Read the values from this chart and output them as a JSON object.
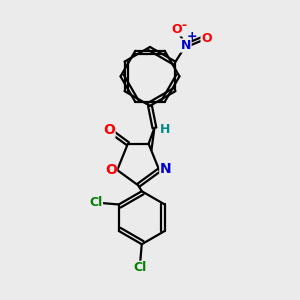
{
  "bg_color": "#ebebeb",
  "bond_color": "#000000",
  "atom_colors": {
    "O": "#ff0000",
    "N": "#0000cd",
    "Cl": "#008000",
    "C": "#000000",
    "H": "#008b8b"
  },
  "bond_lw": 1.6,
  "font_size": 9
}
